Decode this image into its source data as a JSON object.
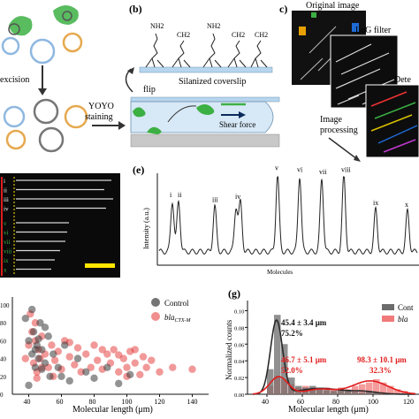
{
  "panels": {
    "a": {
      "excision_label": "excision",
      "yoyo_label": "YOYO",
      "staining_label": "staining",
      "letter": ""
    },
    "b": {
      "letter": "(b)",
      "nh2_label": "NH2",
      "ch2_label": "CH2",
      "coverslip_label": "Silanized coverslip",
      "flip_label": "flip",
      "shear_label": "Shear force"
    },
    "c": {
      "letter": "c)",
      "original_label": "Original image",
      "log_label": "LoG filter",
      "detect_label": "Dete",
      "processing_label_1": "Image",
      "processing_label_2": "processing"
    },
    "d": {
      "roman_labels": [
        "i",
        "ii",
        "iii",
        "iv",
        "v",
        "vi",
        "vii",
        "viii",
        "ix",
        "x"
      ],
      "scalebar_color": "#ffe600"
    },
    "e": {
      "letter": "(e)",
      "ylabel": "Intensity (a.u.)",
      "xlabel": "Molecules",
      "peak_labels": [
        "i",
        "ii",
        "iii",
        "iv",
        "v",
        "vi",
        "vii",
        "viii",
        "ix",
        "x"
      ]
    },
    "f": {
      "legend_control": "Control",
      "legend_bla": "bla",
      "legend_bla_sub": "CTX-M",
      "xlabel": "Molecular length (μm)",
      "xticks": [
        "40",
        "60",
        "80",
        "100",
        "120",
        "140"
      ],
      "yticks": [
        "0",
        "20",
        "40",
        "60",
        "80",
        "100"
      ]
    },
    "g": {
      "letter": "(g)",
      "ylabel": "Normalized counts",
      "xlabel": "Molecular length (μm)",
      "yticks": [
        "0.00",
        "0.02",
        "0.04",
        "0.06",
        "0.08",
        "0.10"
      ],
      "xticks": [
        "40",
        "60",
        "80",
        "100",
        "120"
      ],
      "legend_control": "Cont",
      "legend_bla": "bla",
      "ann1_line1": "45.4 ± 3.4 μm",
      "ann1_line2": "75.2%",
      "ann2_line1": "46.7 ± 5.1 μm",
      "ann2_line2": "52.0%",
      "ann3_line1": "98.3 ± 10.1 μm",
      "ann3_line2": "32.3%"
    }
  },
  "colors": {
    "control": "#3a3a3a",
    "bla": "#e11d1d",
    "green": "#3cb043",
    "blue_slide": "#c7def0"
  },
  "chart_data": [
    {
      "type": "line",
      "panel": "e",
      "title": "",
      "xlabel": "Molecules",
      "ylabel": "Intensity (a.u.)",
      "peaks": [
        {
          "label": "i",
          "height": 0.62
        },
        {
          "label": "ii",
          "height": 0.62
        },
        {
          "label": "iii",
          "height": 0.56
        },
        {
          "label": "iv",
          "height": 0.6
        },
        {
          "label": "v",
          "height": 0.95
        },
        {
          "label": "vi",
          "height": 0.93
        },
        {
          "label": "vii",
          "height": 0.9
        },
        {
          "label": "viii",
          "height": 0.93
        },
        {
          "label": "ix",
          "height": 0.52
        },
        {
          "label": "x",
          "height": 0.5
        }
      ]
    },
    {
      "type": "scatter",
      "panel": "f",
      "xlabel": "Molecular length (μm)",
      "xlim": [
        30,
        150
      ],
      "ylim": [
        0,
        105
      ],
      "series": [
        {
          "name": "Control",
          "points": [
            [
              38,
              85
            ],
            [
              40,
              60
            ],
            [
              42,
              45
            ],
            [
              43,
              70
            ],
            [
              44,
              30
            ],
            [
              45,
              55
            ],
            [
              46,
              40
            ],
            [
              47,
              80
            ],
            [
              48,
              50
            ],
            [
              50,
              35
            ],
            [
              52,
              65
            ],
            [
              55,
              45
            ],
            [
              58,
              30
            ],
            [
              60,
              20
            ],
            [
              62,
              55
            ],
            [
              65,
              15
            ],
            [
              70,
              40
            ],
            [
              75,
              25
            ],
            [
              80,
              18
            ],
            [
              88,
              30
            ],
            [
              95,
              12
            ],
            [
              102,
              22
            ],
            [
              40,
              10
            ],
            [
              42,
              95
            ],
            [
              44,
              50
            ],
            [
              46,
              62
            ],
            [
              48,
              28
            ],
            [
              50,
              75
            ],
            [
              53,
              20
            ]
          ]
        },
        {
          "name": "bla",
          "points": [
            [
              38,
              40
            ],
            [
              40,
              55
            ],
            [
              41,
              90
            ],
            [
              42,
              70
            ],
            [
              43,
              35
            ],
            [
              44,
              60
            ],
            [
              45,
              25
            ],
            [
              46,
              50
            ],
            [
              47,
              40
            ],
            [
              48,
              65
            ],
            [
              50,
              45
            ],
            [
              52,
              30
            ],
            [
              54,
              55
            ],
            [
              56,
              38
            ],
            [
              58,
              48
            ],
            [
              60,
              28
            ],
            [
              62,
              60
            ],
            [
              65,
              42
            ],
            [
              68,
              33
            ],
            [
              70,
              52
            ],
            [
              72,
              25
            ],
            [
              75,
              45
            ],
            [
              78,
              30
            ],
            [
              80,
              55
            ],
            [
              82,
              38
            ],
            [
              85,
              28
            ],
            [
              88,
              45
            ],
            [
              90,
              35
            ],
            [
              92,
              50
            ],
            [
              95,
              25
            ],
            [
              98,
              40
            ],
            [
              100,
              30
            ],
            [
              102,
              48
            ],
            [
              105,
              35
            ],
            [
              108,
              22
            ],
            [
              110,
              42
            ],
            [
              112,
              30
            ],
            [
              115,
              38
            ],
            [
              120,
              25
            ],
            [
              128,
              30
            ],
            [
              140,
              28
            ],
            [
              45,
              18
            ],
            [
              55,
              20
            ],
            [
              65,
              58
            ],
            [
              85,
              50
            ],
            [
              95,
              44
            ],
            [
              100,
              20
            ],
            [
              105,
              50
            ],
            [
              44,
              80
            ],
            [
              48,
              30
            ]
          ]
        }
      ]
    },
    {
      "type": "bar",
      "panel": "g",
      "xlabel": "Molecular length (μm)",
      "ylabel": "Normalized counts",
      "ylim": [
        0,
        0.11
      ],
      "series": [
        {
          "name": "Control",
          "bins": [
            [
              40,
              0.03
            ],
            [
              44,
              0.095
            ],
            [
              48,
              0.06
            ],
            [
              52,
              0.02
            ],
            [
              56,
              0.01
            ],
            [
              60,
              0.008
            ],
            [
              64,
              0.01
            ],
            [
              68,
              0.008
            ],
            [
              72,
              0.005
            ],
            [
              76,
              0.004
            ],
            [
              80,
              0.006
            ],
            [
              84,
              0.004
            ],
            [
              88,
              0.003
            ],
            [
              92,
              0.002
            ],
            [
              96,
              0.003
            ],
            [
              100,
              0.002
            ]
          ]
        },
        {
          "name": "bla",
          "bins": [
            [
              40,
              0.01
            ],
            [
              44,
              0.022
            ],
            [
              48,
              0.018
            ],
            [
              52,
              0.012
            ],
            [
              56,
              0.008
            ],
            [
              60,
              0.01
            ],
            [
              64,
              0.008
            ],
            [
              68,
              0.006
            ],
            [
              72,
              0.008
            ],
            [
              76,
              0.006
            ],
            [
              80,
              0.008
            ],
            [
              84,
              0.006
            ],
            [
              88,
              0.01
            ],
            [
              92,
              0.012
            ],
            [
              96,
              0.014
            ],
            [
              100,
              0.018
            ],
            [
              104,
              0.014
            ],
            [
              108,
              0.01
            ],
            [
              112,
              0.006
            ],
            [
              116,
              0.004
            ]
          ]
        }
      ]
    }
  ]
}
